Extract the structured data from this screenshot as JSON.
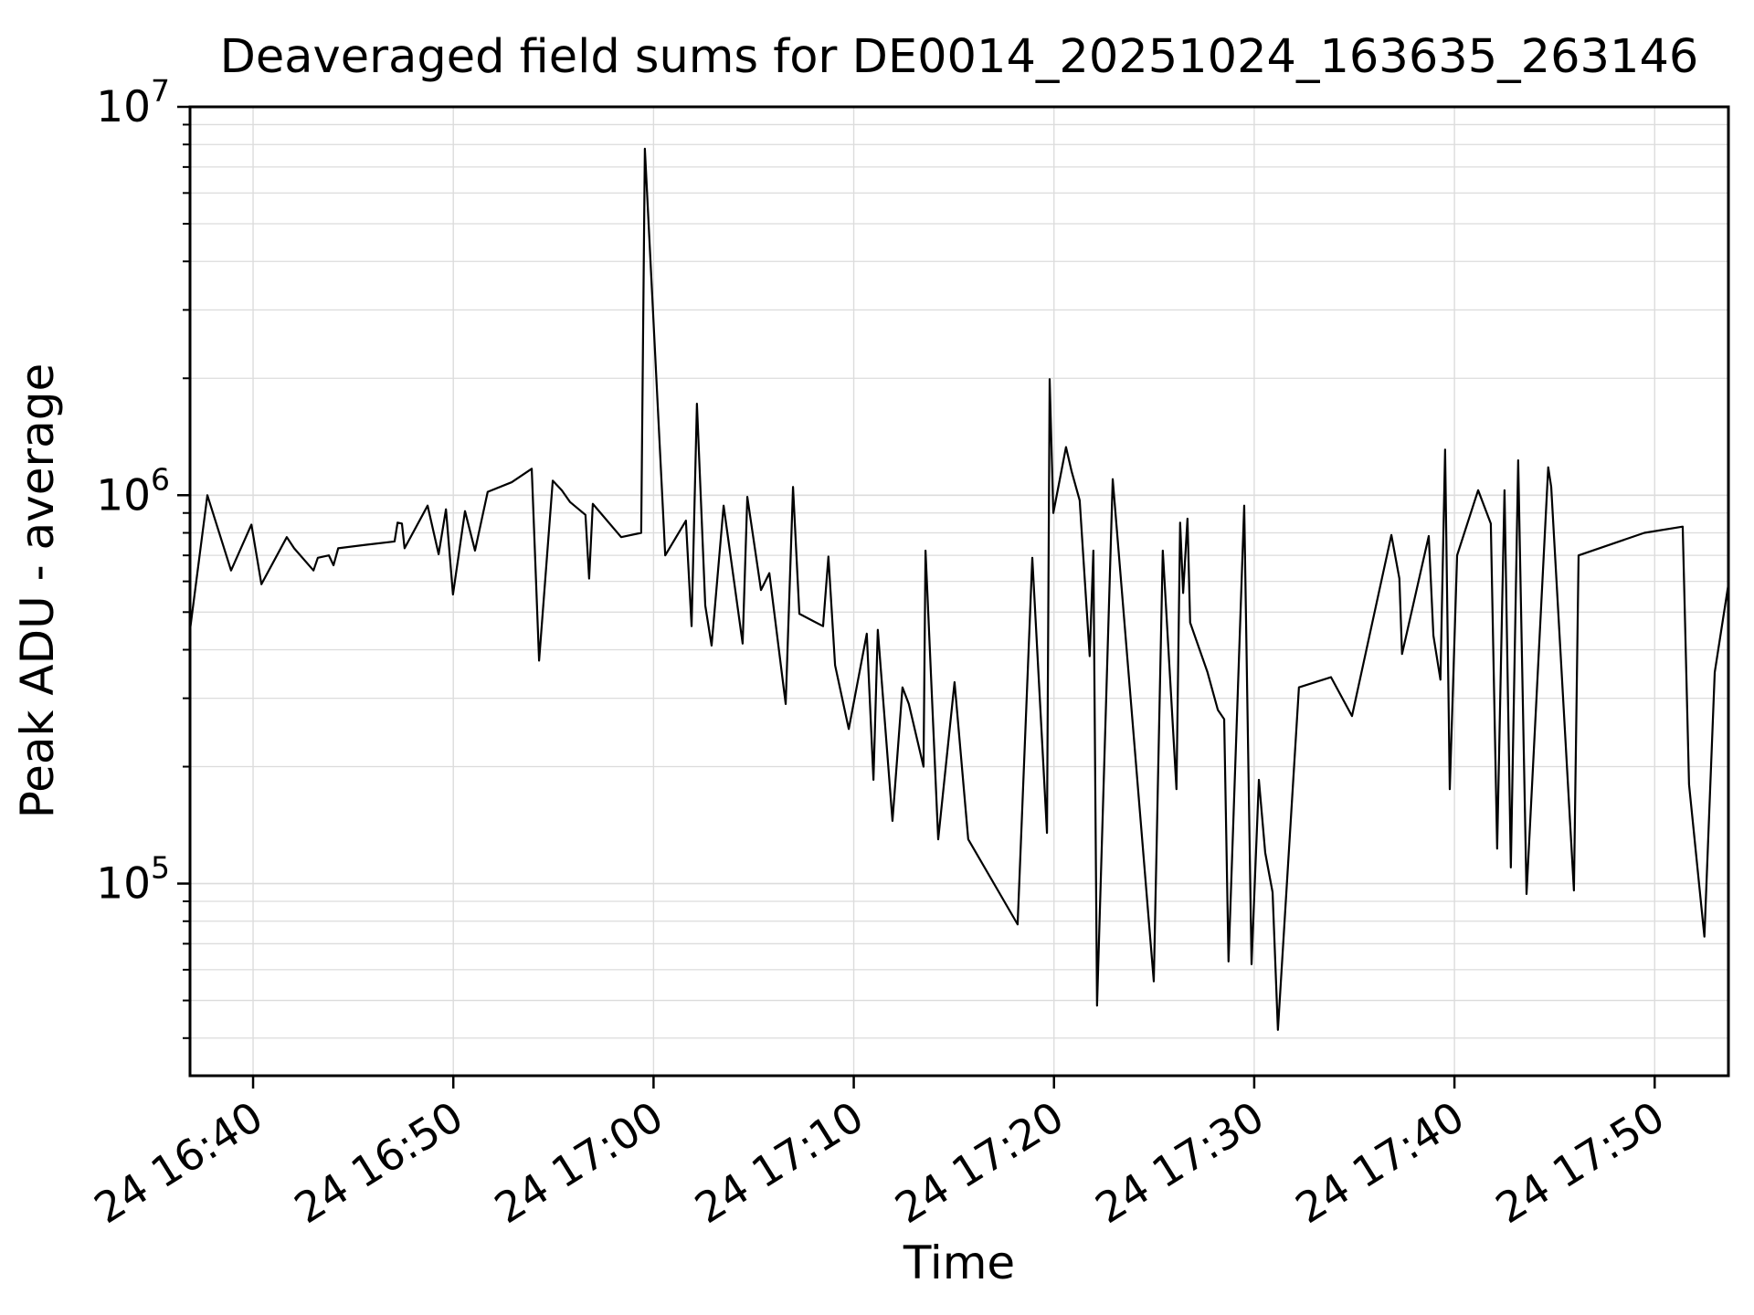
{
  "figure": {
    "title": "Deaveraged field sums for DE0014_20251024_163635_263146",
    "xlabel": "Time",
    "ylabel": "Peak ADU - average"
  },
  "chart_data": {
    "type": "line",
    "title": "Deaveraged field sums for DE0014_20251024_163635_263146",
    "xlabel": "Time",
    "ylabel": "Peak ADU - average",
    "yscale": "log",
    "ylim": [
      32000,
      10000000
    ],
    "xlim": [
      "16:36:51",
      "17:53:41"
    ],
    "x_major_ticks": [
      "16:40:00",
      "16:50:00",
      "17:00:00",
      "17:10:00",
      "17:20:00",
      "17:30:00",
      "17:40:00",
      "17:50:00"
    ],
    "x_tick_labels": [
      "24 16:40",
      "24 16:50",
      "24 17:00",
      "24 17:10",
      "24 17:20",
      "24 17:30",
      "24 17:40",
      "24 17:50"
    ],
    "y_major_ticks": [
      100000,
      1000000,
      10000000
    ],
    "y_tick_exponents": [
      5,
      6,
      7
    ],
    "grid": true,
    "grid_which": "both",
    "grid_color": "#dcdcdc",
    "line_color": "#000000",
    "background_color": "#ffffff",
    "legend": null,
    "points": [
      [
        "16:36:51",
        450000
      ],
      [
        "16:37:43",
        1000000
      ],
      [
        "16:38:54",
        640000
      ],
      [
        "16:39:55",
        840000
      ],
      [
        "16:40:25",
        590000
      ],
      [
        "16:41:41",
        780000
      ],
      [
        "16:42:03",
        730000
      ],
      [
        "16:43:01",
        640000
      ],
      [
        "16:43:14",
        690000
      ],
      [
        "16:43:47",
        700000
      ],
      [
        "16:44:01",
        660000
      ],
      [
        "16:44:15",
        730000
      ],
      [
        "16:45:37",
        745000
      ],
      [
        "16:47:04",
        760000
      ],
      [
        "16:47:13",
        850000
      ],
      [
        "16:47:26",
        845000
      ],
      [
        "16:47:34",
        730000
      ],
      [
        "16:48:43",
        940000
      ],
      [
        "16:49:16",
        705000
      ],
      [
        "16:49:38",
        920000
      ],
      [
        "16:49:59",
        555000
      ],
      [
        "16:50:35",
        910000
      ],
      [
        "16:51:05",
        720000
      ],
      [
        "16:51:43",
        1020000
      ],
      [
        "16:52:55",
        1080000
      ],
      [
        "16:53:55",
        1170000
      ],
      [
        "16:54:17",
        375000
      ],
      [
        "16:54:58",
        1090000
      ],
      [
        "16:55:25",
        1030000
      ],
      [
        "16:55:50",
        960000
      ],
      [
        "16:56:36",
        890000
      ],
      [
        "16:56:47",
        610000
      ],
      [
        "16:56:58",
        950000
      ],
      [
        "16:58:23",
        780000
      ],
      [
        "16:59:23",
        800000
      ],
      [
        "16:59:34",
        7800000
      ],
      [
        "17:00:35",
        700000
      ],
      [
        "17:01:37",
        860000
      ],
      [
        "17:01:54",
        460000
      ],
      [
        "17:02:10",
        1720000
      ],
      [
        "17:02:35",
        520000
      ],
      [
        "17:02:54",
        410000
      ],
      [
        "17:03:30",
        940000
      ],
      [
        "17:04:27",
        415000
      ],
      [
        "17:04:41",
        990000
      ],
      [
        "17:05:22",
        570000
      ],
      [
        "17:05:47",
        630000
      ],
      [
        "17:06:36",
        290000
      ],
      [
        "17:06:58",
        1050000
      ],
      [
        "17:07:17",
        495000
      ],
      [
        "17:08:28",
        460000
      ],
      [
        "17:08:44",
        695000
      ],
      [
        "17:09:04",
        365000
      ],
      [
        "17:09:45",
        250000
      ],
      [
        "17:10:39",
        440000
      ],
      [
        "17:10:59",
        185000
      ],
      [
        "17:11:12",
        450000
      ],
      [
        "17:11:56",
        145000
      ],
      [
        "17:12:26",
        320000
      ],
      [
        "17:12:45",
        290000
      ],
      [
        "17:13:29",
        200000
      ],
      [
        "17:13:35",
        720000
      ],
      [
        "17:14:13",
        130000
      ],
      [
        "17:15:02",
        330000
      ],
      [
        "17:15:43",
        130000
      ],
      [
        "17:18:11",
        78500
      ],
      [
        "17:18:55",
        690000
      ],
      [
        "17:19:39",
        135000
      ],
      [
        "17:19:47",
        1990000
      ],
      [
        "17:19:58",
        900000
      ],
      [
        "17:20:36",
        1330000
      ],
      [
        "17:20:53",
        1150000
      ],
      [
        "17:21:17",
        970000
      ],
      [
        "17:21:47",
        385000
      ],
      [
        "17:21:58",
        720000
      ],
      [
        "17:22:09",
        48500
      ],
      [
        "17:22:56",
        1100000
      ],
      [
        "17:24:59",
        56000
      ],
      [
        "17:25:26",
        720000
      ],
      [
        "17:26:07",
        175000
      ],
      [
        "17:26:18",
        850000
      ],
      [
        "17:26:27",
        560000
      ],
      [
        "17:26:40",
        870000
      ],
      [
        "17:26:48",
        470000
      ],
      [
        "17:27:40",
        350000
      ],
      [
        "17:28:11",
        280000
      ],
      [
        "17:28:30",
        265000
      ],
      [
        "17:28:43",
        63000
      ],
      [
        "17:29:30",
        940000
      ],
      [
        "17:29:52",
        62000
      ],
      [
        "17:30:14",
        185000
      ],
      [
        "17:30:33",
        120000
      ],
      [
        "17:30:55",
        95000
      ],
      [
        "17:31:11",
        42000
      ],
      [
        "17:32:14",
        320000
      ],
      [
        "17:33:50",
        340000
      ],
      [
        "17:34:53",
        270000
      ],
      [
        "17:36:51",
        790000
      ],
      [
        "17:37:15",
        610000
      ],
      [
        "17:37:23",
        390000
      ],
      [
        "17:38:43",
        785000
      ],
      [
        "17:38:57",
        435000
      ],
      [
        "17:39:18",
        335000
      ],
      [
        "17:39:32",
        1310000
      ],
      [
        "17:39:46",
        175000
      ],
      [
        "17:40:08",
        700000
      ],
      [
        "17:41:11",
        1030000
      ],
      [
        "17:41:49",
        845000
      ],
      [
        "17:42:08",
        123000
      ],
      [
        "17:42:30",
        1030000
      ],
      [
        "17:42:49",
        110000
      ],
      [
        "17:43:11",
        1230000
      ],
      [
        "17:43:36",
        94000
      ],
      [
        "17:44:41",
        1180000
      ],
      [
        "17:44:50",
        1050000
      ],
      [
        "17:45:58",
        96000
      ],
      [
        "17:46:12",
        700000
      ],
      [
        "17:49:29",
        800000
      ],
      [
        "17:51:24",
        830000
      ],
      [
        "17:51:43",
        180000
      ],
      [
        "17:52:29",
        73000
      ],
      [
        "17:53:00",
        350000
      ],
      [
        "17:53:41",
        590000
      ]
    ]
  }
}
